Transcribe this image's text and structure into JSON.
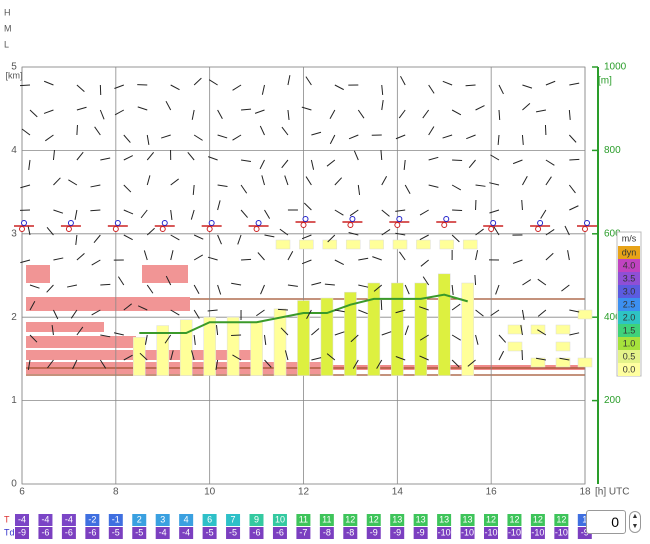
{
  "levels": [
    "H",
    "M",
    "L"
  ],
  "left_axis": {
    "unit": "[km]",
    "ylim": [
      0,
      5
    ],
    "yticks": [
      0,
      1,
      2,
      3,
      4,
      5
    ]
  },
  "right_axis": {
    "unit": "[m]",
    "ylim": [
      0,
      1000
    ],
    "yticks": [
      200,
      400,
      600,
      800,
      1000
    ],
    "color": "#2a9d2a"
  },
  "x_axis": {
    "unit": "[h] UTC",
    "xlim": [
      6,
      18
    ],
    "xticks": [
      6,
      8,
      10,
      12,
      14,
      16,
      18
    ]
  },
  "legend": {
    "title": "m/s",
    "items": [
      {
        "label": "dyn",
        "color": "#e8a317"
      },
      {
        "label": "4.0",
        "color": "#c043c0"
      },
      {
        "label": "3.5",
        "color": "#8f4fd6"
      },
      {
        "label": "3.0",
        "color": "#5b5be0"
      },
      {
        "label": "2.5",
        "color": "#3c8ff0"
      },
      {
        "label": "2.0",
        "color": "#2ec4c4"
      },
      {
        "label": "1.5",
        "color": "#3ed27a"
      },
      {
        "label": "1.0",
        "color": "#a6e23c"
      },
      {
        "label": "0.5",
        "color": "#e4f38a"
      },
      {
        "label": "0.0",
        "color": "#ffffa0"
      }
    ]
  },
  "thermals": {
    "x": [
      8.5,
      9,
      9.5,
      10,
      10.5,
      11,
      11.5,
      12,
      12.5,
      13,
      13.5,
      14,
      14.5,
      15,
      15.5
    ],
    "top": [
      1.76,
      1.9,
      1.97,
      2.0,
      2.0,
      1.94,
      2.1,
      2.2,
      2.23,
      2.3,
      2.41,
      2.41,
      2.41,
      2.52,
      2.41
    ],
    "strong_color": "#ddf040",
    "weak_color": "#ffff99"
  },
  "cloud_base": {
    "x": [
      8.5,
      9.5,
      10,
      11,
      12,
      12.5,
      13,
      13.5,
      14.5,
      15,
      15.5
    ],
    "values": [
      1.81,
      1.81,
      1.94,
      1.94,
      2.05,
      2.05,
      2.15,
      2.22,
      2.22,
      2.27,
      2.19
    ],
    "color": "#3a9a2a"
  },
  "rows": {
    "T_label": "T",
    "Td_label": "Td",
    "T": [
      "-4",
      "-4",
      "-4",
      "-2",
      "-1",
      "2",
      "3",
      "4",
      "6",
      "7",
      "9",
      "10",
      "11",
      "11",
      "12",
      "12",
      "13",
      "13",
      "13",
      "13",
      "12",
      "12",
      "12",
      "12",
      "1"
    ],
    "Td": [
      "-9",
      "-6",
      "-6",
      "-6",
      "-5",
      "-5",
      "-4",
      "-4",
      "-5",
      "-5",
      "-6",
      "-6",
      "-7",
      "-8",
      "-8",
      "-9",
      "-9",
      "-9",
      "-10",
      "-10",
      "-10",
      "-10",
      "-10",
      "-10",
      "-9"
    ]
  },
  "spinner": "0"
}
